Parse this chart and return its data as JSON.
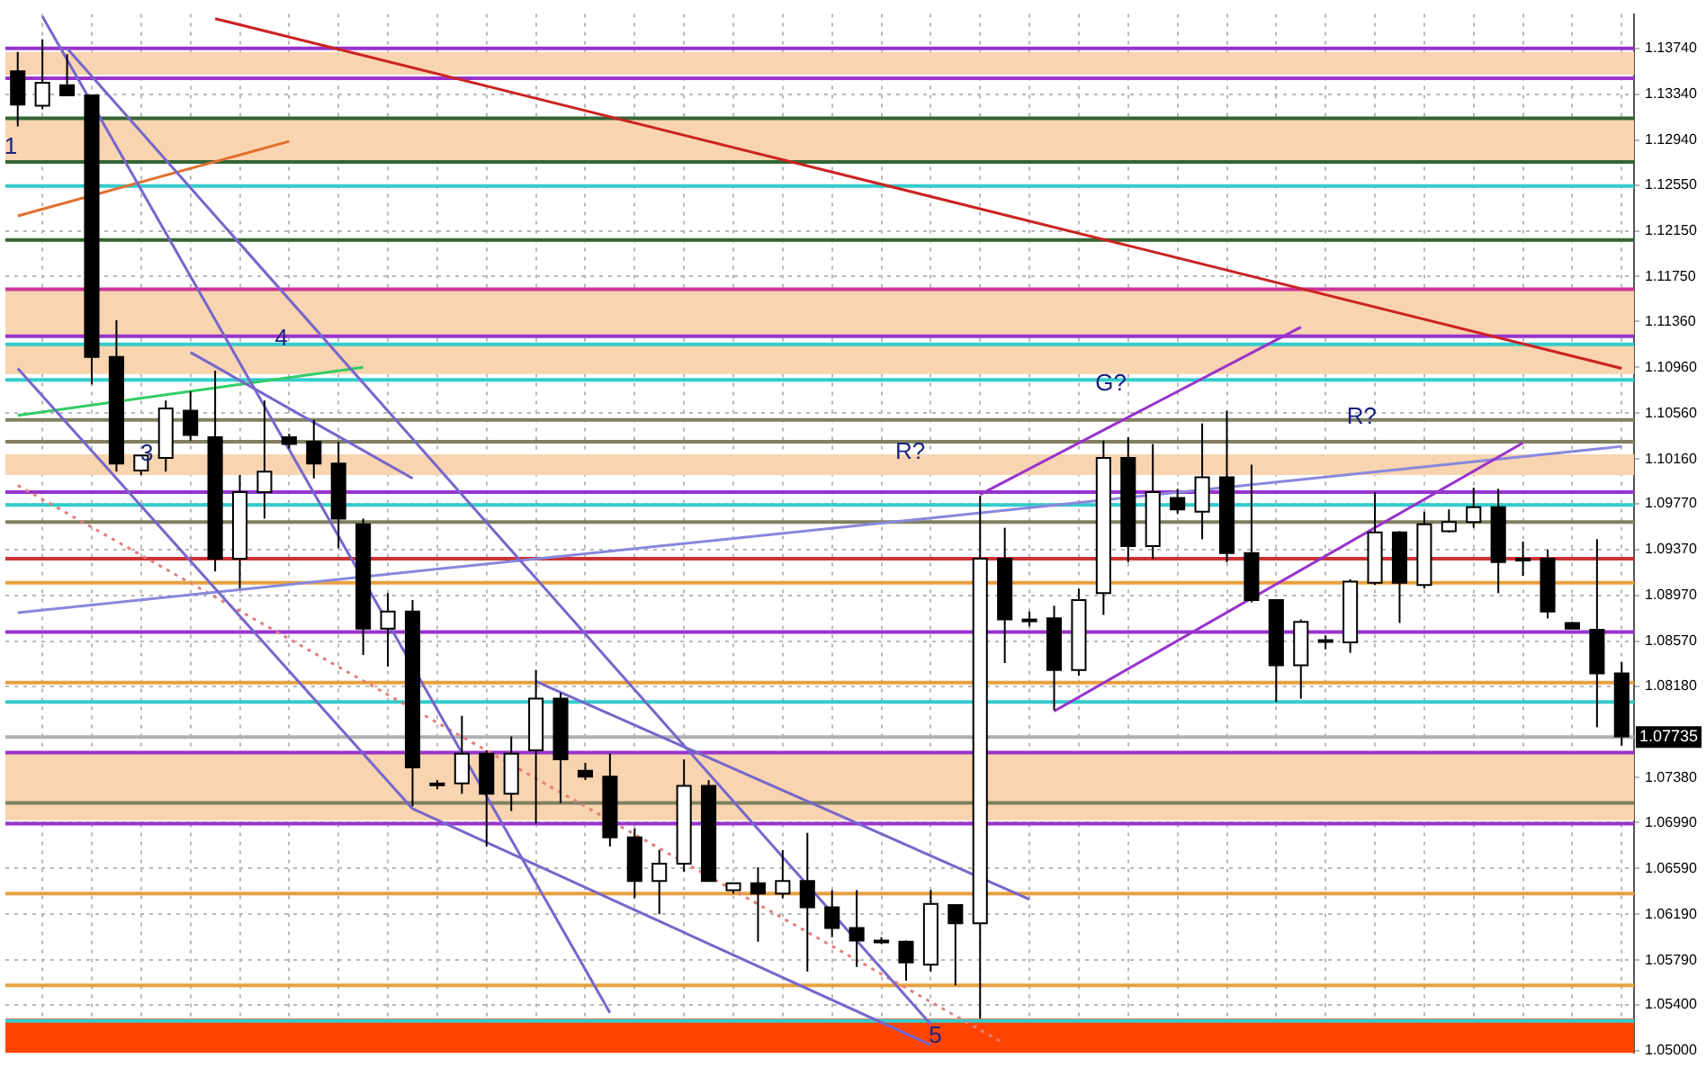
{
  "chart_data": {
    "type": "candlestick",
    "categories": [
      null,
      null,
      null,
      null,
      null,
      null,
      null,
      null,
      null,
      null,
      null,
      null,
      null,
      null,
      null,
      null,
      null,
      null,
      null,
      null,
      null,
      null,
      null,
      null,
      null,
      null,
      null,
      null,
      null,
      null,
      null,
      null,
      null,
      null,
      null,
      null,
      null,
      null,
      null,
      null,
      null,
      null,
      null,
      null,
      null,
      null,
      null,
      null,
      null,
      null,
      null,
      null,
      null,
      null,
      null,
      null,
      null,
      null,
      null,
      null,
      null,
      null,
      null,
      null,
      null,
      null
    ],
    "ohlc": [
      [
        1.1354,
        1.1371,
        1.1306,
        1.1325
      ],
      [
        1.1324,
        1.1382,
        1.1321,
        1.1344
      ],
      [
        1.1342,
        1.1369,
        1.1333,
        1.1333
      ],
      [
        1.1333,
        1.1333,
        1.1081,
        1.1105
      ],
      [
        1.1105,
        1.1137,
        1.1005,
        1.1012
      ],
      [
        1.1006,
        1.1019,
        1.1002,
        1.1019
      ],
      [
        1.1017,
        1.1067,
        1.1005,
        1.106
      ],
      [
        1.1058,
        1.1075,
        1.1032,
        1.1037
      ],
      [
        1.1035,
        1.1093,
        1.0918,
        1.0929
      ],
      [
        1.0929,
        1.1002,
        1.0903,
        1.0987
      ],
      [
        1.0987,
        1.1067,
        1.0964,
        1.1005
      ],
      [
        1.1035,
        1.1038,
        1.1025,
        1.1029
      ],
      [
        1.1031,
        1.105,
        1.0999,
        1.1012
      ],
      [
        1.1012,
        1.1031,
        1.0938,
        1.0964
      ],
      [
        1.0959,
        1.0964,
        1.0845,
        1.0868
      ],
      [
        1.0868,
        1.0899,
        1.0835,
        1.0883
      ],
      [
        1.0883,
        1.0893,
        1.0713,
        1.0747
      ],
      [
        1.0733,
        1.0736,
        1.0728,
        1.0733
      ],
      [
        1.0733,
        1.0792,
        1.0724,
        1.0759
      ],
      [
        1.0759,
        1.0762,
        1.0678,
        1.0724
      ],
      [
        1.0724,
        1.0774,
        1.0709,
        1.0759
      ],
      [
        1.0762,
        1.0832,
        1.0698,
        1.0807
      ],
      [
        1.0807,
        1.0812,
        1.0716,
        1.0754
      ],
      [
        1.0744,
        1.0751,
        1.0736,
        1.0739
      ],
      [
        1.0739,
        1.0759,
        1.0678,
        1.0686
      ],
      [
        1.0686,
        1.0694,
        1.0633,
        1.0648
      ],
      [
        1.0648,
        1.0675,
        1.0619,
        1.0663
      ],
      [
        1.0663,
        1.0754,
        1.0656,
        1.0731
      ],
      [
        1.0731,
        1.0736,
        1.0648,
        1.0648
      ],
      [
        1.064,
        1.0646,
        1.0637,
        1.0646
      ],
      [
        1.0646,
        1.066,
        1.0595,
        1.0637
      ],
      [
        1.0637,
        1.0675,
        1.0633,
        1.0648
      ],
      [
        1.0648,
        1.069,
        1.0569,
        1.0625
      ],
      [
        1.0625,
        1.064,
        1.0599,
        1.0607
      ],
      [
        1.0607,
        1.064,
        1.0573,
        1.0596
      ],
      [
        1.0596,
        1.0599,
        1.0593,
        1.0596
      ],
      [
        1.0595,
        1.0596,
        1.0561,
        1.0577
      ],
      [
        1.0575,
        1.064,
        1.0569,
        1.0628
      ],
      [
        1.0627,
        1.0627,
        1.0557,
        1.0611
      ],
      [
        1.0611,
        1.0984,
        1.0528,
        1.0929
      ],
      [
        1.0929,
        1.0956,
        1.0838,
        1.0876
      ],
      [
        1.0876,
        1.0883,
        1.087,
        1.0876
      ],
      [
        1.0877,
        1.0888,
        1.0797,
        1.0832
      ],
      [
        1.0832,
        1.0903,
        1.0827,
        1.0893
      ],
      [
        1.0899,
        1.1032,
        1.088,
        1.1017
      ],
      [
        1.1017,
        1.1035,
        1.0926,
        1.094
      ],
      [
        1.094,
        1.1029,
        1.0929,
        1.0987
      ],
      [
        1.0982,
        1.099,
        1.0968,
        1.0972
      ],
      [
        1.097,
        1.1047,
        1.0946,
        1.1
      ],
      [
        1.1,
        1.1058,
        1.0926,
        1.0934
      ],
      [
        1.0934,
        1.1011,
        1.0891,
        1.0893
      ],
      [
        1.0893,
        1.0893,
        1.0804,
        1.0836
      ],
      [
        1.0836,
        1.0876,
        1.0807,
        1.0874
      ],
      [
        1.0858,
        1.0862,
        1.085,
        1.0858
      ],
      [
        1.0856,
        1.0911,
        1.0847,
        1.0909
      ],
      [
        1.0908,
        1.0987,
        1.0906,
        1.0952
      ],
      [
        1.0952,
        1.0953,
        1.0873,
        1.0908
      ],
      [
        1.0906,
        1.097,
        1.0903,
        1.0959
      ],
      [
        1.0953,
        1.0972,
        1.0952,
        1.0961
      ],
      [
        1.0961,
        1.0991,
        1.0956,
        1.0974
      ],
      [
        1.0974,
        1.099,
        1.0899,
        1.0926
      ],
      [
        1.0929,
        1.0944,
        1.0914,
        1.0929
      ],
      [
        1.0929,
        1.0937,
        1.0877,
        1.0883
      ],
      [
        1.0873,
        1.0874,
        1.0868,
        1.0868
      ],
      [
        1.0867,
        1.0946,
        1.0782,
        1.0829
      ],
      [
        1.0829,
        1.0839,
        1.0766,
        1.0774
      ]
    ],
    "series": [
      {
        "type": "line",
        "color": "#cc2222",
        "values": [
          null,
          null,
          null,
          null,
          null,
          null,
          null,
          null,
          1.14,
          null,
          null,
          null,
          null,
          null,
          null,
          null,
          null,
          null,
          null,
          null,
          null,
          null,
          null,
          null,
          null,
          null,
          null,
          null,
          null,
          null,
          null,
          null,
          null,
          null,
          null,
          null,
          null,
          null,
          null,
          null,
          null,
          null,
          null,
          null,
          null,
          null,
          null,
          null,
          null,
          null,
          null,
          null,
          null,
          null,
          null,
          null,
          null,
          null,
          null,
          null,
          null,
          null,
          null,
          null,
          null,
          1.1095
        ]
      },
      {
        "type": "line",
        "color": "#7766cc",
        "values": [
          null,
          1.1402,
          null,
          null,
          null,
          null,
          null,
          null,
          null,
          null,
          null,
          null,
          null,
          null,
          null,
          null,
          null,
          null,
          null,
          null,
          null,
          null,
          null,
          null,
          1.0533,
          null,
          null,
          null,
          null,
          null,
          null,
          null,
          null,
          null,
          null,
          null,
          null,
          null,
          null,
          null,
          null,
          null,
          null,
          null,
          null,
          null,
          null,
          null,
          null,
          null,
          null,
          null,
          null,
          null,
          null,
          null,
          null,
          null,
          null,
          null,
          null,
          null,
          null,
          null,
          null,
          null
        ]
      },
      {
        "type": "line",
        "color": "#7766cc",
        "values": [
          null,
          null,
          1.1374,
          null,
          null,
          null,
          null,
          null,
          null,
          null,
          null,
          null,
          null,
          null,
          null,
          null,
          null,
          null,
          null,
          null,
          null,
          null,
          null,
          null,
          null,
          null,
          null,
          null,
          null,
          null,
          null,
          null,
          null,
          null,
          null,
          null,
          null,
          1.0523,
          null,
          null,
          null,
          null,
          null,
          null,
          null,
          null,
          null,
          null,
          null,
          null,
          null,
          null,
          null,
          null,
          null,
          null,
          null,
          null,
          null,
          null,
          null,
          null,
          null,
          null,
          null,
          null
        ]
      },
      {
        "type": "line",
        "color": "#7766cc",
        "values": [
          1.1095,
          null,
          null,
          null,
          null,
          null,
          null,
          null,
          null,
          null,
          null,
          null,
          null,
          null,
          null,
          null,
          1.0711,
          null,
          null,
          null,
          null,
          null,
          null,
          null,
          null,
          null,
          null,
          null,
          null,
          null,
          null,
          null,
          null,
          null,
          null,
          null,
          null,
          1.0505,
          null,
          null,
          null,
          null,
          null,
          null,
          null,
          null,
          null,
          null,
          null,
          null,
          null,
          null,
          null,
          null,
          null,
          null,
          null,
          null,
          null,
          null,
          null,
          null,
          null,
          null,
          null,
          null
        ]
      },
      {
        "type": "line",
        "color": "#7766cc",
        "values": [
          null,
          null,
          null,
          null,
          null,
          null,
          null,
          1.1109,
          null,
          null,
          null,
          null,
          null,
          null,
          null,
          null,
          1.0999,
          null,
          null,
          null,
          null,
          null,
          null,
          null,
          null,
          null,
          null,
          null,
          null,
          null,
          null,
          null,
          null,
          null,
          null,
          null,
          null,
          null,
          null,
          null,
          null,
          null,
          null,
          null,
          null,
          null,
          null,
          null,
          null,
          null,
          null,
          null,
          null,
          null,
          null,
          null,
          null,
          null,
          null,
          null,
          null,
          null,
          null,
          null,
          null,
          null
        ]
      },
      {
        "type": "line",
        "color": "#7766cc",
        "values": [
          null,
          null,
          null,
          null,
          null,
          null,
          null,
          null,
          null,
          null,
          null,
          null,
          null,
          null,
          null,
          null,
          null,
          null,
          null,
          null,
          null,
          1.0822,
          null,
          null,
          null,
          null,
          null,
          null,
          null,
          null,
          null,
          null,
          null,
          null,
          null,
          null,
          null,
          null,
          null,
          null,
          null,
          1.0632,
          null,
          null,
          null,
          null,
          null,
          null,
          null,
          null,
          null,
          null,
          null,
          null,
          null,
          null,
          null,
          null,
          null,
          null,
          null,
          null,
          null,
          null,
          null,
          null
        ]
      },
      {
        "type": "line",
        "color": "#9933cc",
        "values": [
          null,
          null,
          null,
          null,
          null,
          null,
          null,
          null,
          null,
          null,
          null,
          null,
          null,
          null,
          null,
          null,
          null,
          null,
          null,
          null,
          null,
          null,
          null,
          null,
          null,
          null,
          null,
          null,
          null,
          null,
          null,
          null,
          null,
          null,
          null,
          null,
          null,
          null,
          null,
          1.0985,
          null,
          null,
          null,
          null,
          null,
          null,
          null,
          null,
          null,
          null,
          null,
          null,
          1.1131,
          null,
          null,
          null,
          null,
          null,
          null,
          null,
          null,
          null,
          null,
          null,
          null,
          null
        ]
      },
      {
        "type": "line",
        "color": "#9933cc",
        "values": [
          null,
          null,
          null,
          null,
          null,
          null,
          null,
          null,
          null,
          null,
          null,
          null,
          null,
          null,
          null,
          null,
          null,
          null,
          null,
          null,
          null,
          null,
          null,
          null,
          null,
          null,
          null,
          null,
          null,
          null,
          null,
          null,
          null,
          null,
          null,
          null,
          null,
          null,
          null,
          null,
          null,
          null,
          1.0796,
          null,
          null,
          null,
          null,
          null,
          null,
          null,
          null,
          null,
          null,
          null,
          null,
          null,
          null,
          null,
          null,
          null,
          null,
          1.103,
          null,
          null,
          null,
          null
        ]
      },
      {
        "type": "line",
        "color": "#8888dd",
        "values": [
          1.0882,
          null,
          null,
          null,
          null,
          null,
          null,
          null,
          null,
          null,
          null,
          null,
          null,
          null,
          null,
          null,
          null,
          null,
          null,
          null,
          null,
          null,
          null,
          null,
          null,
          null,
          null,
          null,
          null,
          null,
          null,
          null,
          null,
          null,
          null,
          null,
          null,
          null,
          null,
          null,
          null,
          null,
          null,
          null,
          null,
          null,
          null,
          null,
          null,
          null,
          null,
          null,
          null,
          null,
          null,
          null,
          null,
          null,
          null,
          null,
          null,
          null,
          null,
          null,
          null,
          1.1027
        ]
      },
      {
        "type": "line",
        "color": "#33cc66",
        "values": [
          1.1054,
          null,
          null,
          null,
          null,
          null,
          null,
          null,
          null,
          null,
          null,
          null,
          null,
          null,
          1.1096,
          null,
          null,
          null,
          null,
          null,
          null,
          null,
          null,
          null,
          null,
          null,
          null,
          null,
          null,
          null,
          null,
          null,
          null,
          null,
          null,
          null,
          null,
          null,
          null,
          null,
          null,
          null,
          null,
          null,
          null,
          null,
          null,
          null,
          null,
          null,
          null,
          null,
          null,
          null,
          null,
          null,
          null,
          null,
          null,
          null,
          null,
          null,
          null,
          null,
          null,
          null
        ]
      },
      {
        "type": "line",
        "color": "#e07030",
        "values": [
          1.1228,
          null,
          null,
          null,
          null,
          null,
          null,
          null,
          null,
          null,
          null,
          1.1293,
          null,
          null,
          null,
          null,
          null,
          null,
          null,
          null,
          null,
          null,
          null,
          null,
          null,
          null,
          null,
          null,
          null,
          null,
          null,
          null,
          null,
          null,
          null,
          null,
          null,
          null,
          null,
          null,
          null,
          null,
          null,
          null,
          null,
          null,
          null,
          null,
          null,
          null,
          null,
          null,
          null,
          null,
          null,
          null,
          null,
          null,
          null,
          null,
          null,
          null,
          null,
          null,
          null,
          null
        ]
      },
      {
        "type": "line",
        "color": "#e08080",
        "line_style": "dotted",
        "values": [
          1.0993,
          null,
          null,
          null,
          null,
          null,
          null,
          null,
          null,
          null,
          null,
          null,
          null,
          null,
          null,
          null,
          null,
          null,
          null,
          null,
          null,
          null,
          null,
          null,
          null,
          null,
          null,
          null,
          null,
          null,
          null,
          null,
          null,
          null,
          null,
          null,
          null,
          null,
          null,
          null,
          1.0506,
          null,
          null,
          null,
          null,
          null,
          null,
          null,
          null,
          null,
          null,
          null,
          null,
          null,
          null,
          null,
          null,
          null,
          null,
          null,
          null,
          null,
          null,
          null,
          null,
          null
        ]
      }
    ],
    "ylim": [
      1.0498,
      1.1404
    ],
    "yticks": [
      {
        "value": 1.1374,
        "label": "1.13740"
      },
      {
        "value": 1.1334,
        "label": "1.13340"
      },
      {
        "value": 1.1294,
        "label": "1.12940"
      },
      {
        "value": 1.1255,
        "label": "1.12550"
      },
      {
        "value": 1.1215,
        "label": "1.12150"
      },
      {
        "value": 1.1175,
        "label": "1.11750"
      },
      {
        "value": 1.1136,
        "label": "1.11360"
      },
      {
        "value": 1.1096,
        "label": "1.10960"
      },
      {
        "value": 1.1056,
        "label": "1.10560"
      },
      {
        "value": 1.1016,
        "label": "1.10160"
      },
      {
        "value": 1.0977,
        "label": "1.09770"
      },
      {
        "value": 1.0937,
        "label": "1.09370"
      },
      {
        "value": 1.0897,
        "label": "1.08970"
      },
      {
        "value": 1.0857,
        "label": "1.08570"
      },
      {
        "value": 1.0818,
        "label": "1.08180"
      },
      {
        "value": 1.0738,
        "label": "1.07380"
      },
      {
        "value": 1.0699,
        "label": "1.06990"
      },
      {
        "value": 1.0659,
        "label": "1.06590"
      },
      {
        "value": 1.0619,
        "label": "1.06190"
      },
      {
        "value": 1.0579,
        "label": "1.05790"
      },
      {
        "value": 1.054,
        "label": "1.05400"
      },
      {
        "value": 1.05,
        "label": "1.05000"
      }
    ],
    "tick_labels": "y",
    "grid": true,
    "ref_lines": [
      {
        "axis": "y",
        "value": 1.1374,
        "color": "#9933cc"
      },
      {
        "axis": "y",
        "value": 1.1348,
        "color": "#9933cc"
      },
      {
        "axis": "y",
        "value": 1.1313,
        "color": "#336633"
      },
      {
        "axis": "y",
        "value": 1.1275,
        "color": "#336633"
      },
      {
        "axis": "y",
        "value": 1.1254,
        "color": "#33cccc"
      },
      {
        "axis": "y",
        "value": 1.1207,
        "color": "#336633"
      },
      {
        "axis": "y",
        "value": 1.1164,
        "color": "#cc3399"
      },
      {
        "axis": "y",
        "value": 1.1123,
        "color": "#9933cc"
      },
      {
        "axis": "y",
        "value": 1.1116,
        "color": "#33cccc"
      },
      {
        "axis": "y",
        "value": 1.1085,
        "color": "#33cccc"
      },
      {
        "axis": "y",
        "value": 1.105,
        "color": "#808060"
      },
      {
        "axis": "y",
        "value": 1.1031,
        "color": "#808060"
      },
      {
        "axis": "y",
        "value": 1.0987,
        "color": "#9933cc"
      },
      {
        "axis": "y",
        "value": 1.0976,
        "color": "#33cccc"
      },
      {
        "axis": "y",
        "value": 1.0961,
        "color": "#808060"
      },
      {
        "axis": "y",
        "value": 1.0929,
        "color": "#cc3333"
      },
      {
        "axis": "y",
        "value": 1.0908,
        "color": "#e8a040"
      },
      {
        "axis": "y",
        "value": 1.0865,
        "color": "#9933cc"
      },
      {
        "axis": "y",
        "value": 1.0821,
        "color": "#e8a040"
      },
      {
        "axis": "y",
        "value": 1.0804,
        "color": "#33cccc"
      },
      {
        "axis": "y",
        "value": 1.07735,
        "label": "1.07735",
        "color": "#b0b0b0"
      },
      {
        "axis": "y",
        "value": 1.076,
        "color": "#9933cc"
      },
      {
        "axis": "y",
        "value": 1.0716,
        "color": "#808060"
      },
      {
        "axis": "y",
        "value": 1.0698,
        "color": "#9933cc"
      },
      {
        "axis": "y",
        "value": 1.0637,
        "color": "#e8a040"
      },
      {
        "axis": "y",
        "value": 1.0557,
        "color": "#e8a040"
      },
      {
        "axis": "y",
        "value": 1.0526,
        "color": "#33cccc"
      }
    ],
    "bands": [
      {
        "axis": "y",
        "from": 1.1351,
        "to": 1.1371,
        "color": "#f8d4b0"
      },
      {
        "axis": "y",
        "from": 1.1275,
        "to": 1.1313,
        "color": "#f8d4b0"
      },
      {
        "axis": "y",
        "from": 1.1123,
        "to": 1.1164,
        "color": "#f8d4b0"
      },
      {
        "axis": "y",
        "from": 1.109,
        "to": 1.1116,
        "color": "#f8d4b0"
      },
      {
        "axis": "y",
        "from": 1.1002,
        "to": 1.102,
        "color": "#f8d4b0"
      },
      {
        "axis": "y",
        "from": 1.0701,
        "to": 1.0759,
        "color": "#f8d4b0"
      },
      {
        "axis": "y",
        "from": 1.0498,
        "to": 1.0528,
        "color": "#ff4400"
      }
    ],
    "annotations": [
      "R?",
      "G?",
      "R?",
      "4",
      "3",
      "1",
      "5"
    ]
  }
}
